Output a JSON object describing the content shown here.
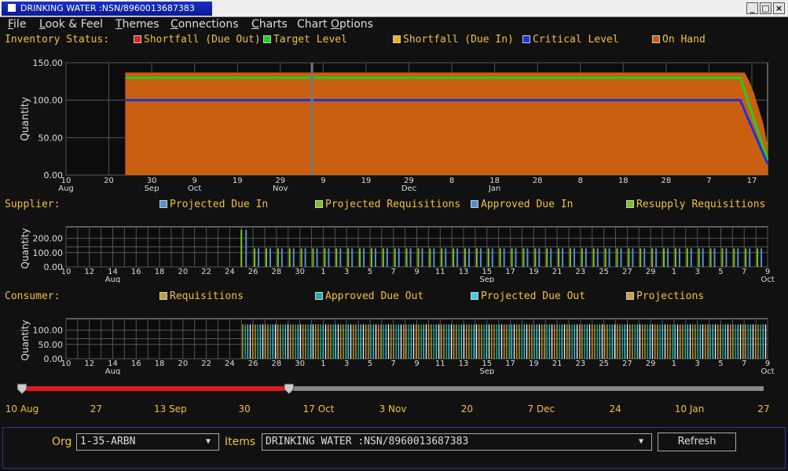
{
  "window": {
    "title": "DRINKING WATER  :NSN/8960013687383"
  },
  "menu": [
    {
      "label": "File",
      "u": "F",
      "rest": "ile"
    },
    {
      "label": "Look & Feel",
      "u": "L",
      "rest": "ook & Feel"
    },
    {
      "label": "Themes",
      "u": "T",
      "rest": "hemes"
    },
    {
      "label": "Connections",
      "u": "C",
      "rest": "onnections"
    },
    {
      "label": "Charts",
      "u": "C",
      "rest": "harts"
    },
    {
      "label": "Chart Options",
      "pre": "Chart ",
      "u": "O",
      "rest": "ptions"
    }
  ],
  "inventory": {
    "title": "Inventory Status:",
    "legend": [
      {
        "label": "Shortfall (Due Out)",
        "color": "#e02020"
      },
      {
        "label": "Target Level",
        "color": "#20d020"
      },
      {
        "label": "Shortfall (Due In)",
        "color": "#f0b020"
      },
      {
        "label": "Critical Level",
        "color": "#2030e0"
      },
      {
        "label": "On Hand",
        "color": "#c86010"
      }
    ]
  },
  "supplier": {
    "title": "Supplier:",
    "legend": [
      {
        "label": "Projected Due In",
        "color": "#5090d0"
      },
      {
        "label": "Projected Requisitions",
        "color": "#80c020"
      },
      {
        "label": "Approved Due In",
        "color": "#5090d0"
      },
      {
        "label": "Resupply Requisitions",
        "color": "#80c020"
      }
    ]
  },
  "consumer": {
    "title": "Consumer:",
    "legend": [
      {
        "label": "Requisitions",
        "color": "#c0a030"
      },
      {
        "label": "Approved Due Out",
        "color": "#20b0a0"
      },
      {
        "label": "Projected Due Out",
        "color": "#40d0e0"
      },
      {
        "label": "Projections",
        "color": "#d0a040"
      }
    ]
  },
  "chart_data": [
    {
      "type": "area",
      "name": "inventory",
      "ylabel": "Quantity",
      "ylim": [
        0,
        150
      ],
      "yticks": [
        "150.00",
        "100.00",
        "50.00",
        "0.00"
      ],
      "xticks": [
        "10",
        "20",
        "30",
        "9",
        "19",
        "29",
        "9",
        "19",
        "29",
        "8",
        "18",
        "28",
        "8",
        "18",
        "28",
        "7",
        "17"
      ],
      "xmonths": [
        {
          "label": "Aug",
          "at": 0
        },
        {
          "label": "Sep",
          "at": 2
        },
        {
          "label": "Oct",
          "at": 3
        },
        {
          "label": "Nov",
          "at": 5
        },
        {
          "label": "Dec",
          "at": 8
        },
        {
          "label": "Jan",
          "at": 10
        }
      ],
      "x_domain_days": [
        0,
        154
      ],
      "series": [
        {
          "name": "On Hand",
          "points": [
            [
              13,
              0
            ],
            [
              13,
              137
            ],
            [
              149,
              137
            ],
            [
              150,
              125
            ],
            [
              151,
              110
            ],
            [
              152,
              90
            ],
            [
              153,
              70
            ],
            [
              154,
              40
            ],
            [
              154,
              0
            ]
          ]
        },
        {
          "name": "Target Level",
          "points": [
            [
              13,
              130
            ],
            [
              148,
              130
            ],
            [
              154,
              20
            ]
          ]
        },
        {
          "name": "Critical Level",
          "points": [
            [
              13,
              100
            ],
            [
              148,
              100
            ],
            [
              154,
              15
            ]
          ]
        }
      ],
      "cursor_day": 54
    },
    {
      "type": "bar",
      "name": "supplier",
      "ylabel": "Quantity",
      "ylim": [
        0,
        280
      ],
      "yticks": [
        "200.00",
        "100.00",
        "0.00"
      ],
      "xticks": [
        "10",
        "12",
        "14",
        "16",
        "18",
        "20",
        "22",
        "24",
        "26",
        "28",
        "30",
        "1",
        "3",
        "5",
        "7",
        "9",
        "11",
        "13",
        "15",
        "17",
        "19",
        "21",
        "23",
        "25",
        "27",
        "29",
        "1",
        "3",
        "5",
        "7",
        "9"
      ],
      "xmonths": [
        {
          "label": "Aug",
          "at": 2
        },
        {
          "label": "Sep",
          "at": 18
        },
        {
          "label": "Oct",
          "at": 30
        }
      ],
      "first_bar_index": 7.6,
      "spike_value": 260,
      "bar_value": 130
    },
    {
      "type": "bar",
      "name": "consumer",
      "ylabel": "Quantity",
      "ylim": [
        0,
        140
      ],
      "yticks": [
        "100.00",
        "50.00",
        "0.00"
      ],
      "xticks": [
        "10",
        "12",
        "14",
        "16",
        "18",
        "20",
        "22",
        "24",
        "26",
        "28",
        "30",
        "1",
        "3",
        "5",
        "7",
        "9",
        "11",
        "13",
        "15",
        "17",
        "19",
        "21",
        "23",
        "25",
        "27",
        "29",
        "1",
        "3",
        "5",
        "7",
        "9"
      ],
      "xmonths": [
        {
          "label": "Aug",
          "at": 2
        },
        {
          "label": "Sep",
          "at": 18
        },
        {
          "label": "Oct",
          "at": 30
        }
      ],
      "first_bar_index": 7.6,
      "bar_value": 120
    }
  ],
  "timeline": {
    "labels": [
      "10 Aug",
      "27",
      "13 Sep",
      "30",
      "17 Oct",
      "3 Nov",
      "20",
      "7 Dec",
      "24",
      "10 Jan",
      "27"
    ],
    "selection_end": 0.36
  },
  "bottom": {
    "org_label": "Org",
    "org_value": "1-35-ARBN",
    "items_label": "Items",
    "items_value": "DRINKING WATER  :NSN/8960013687383",
    "refresh_label": "Refresh"
  }
}
